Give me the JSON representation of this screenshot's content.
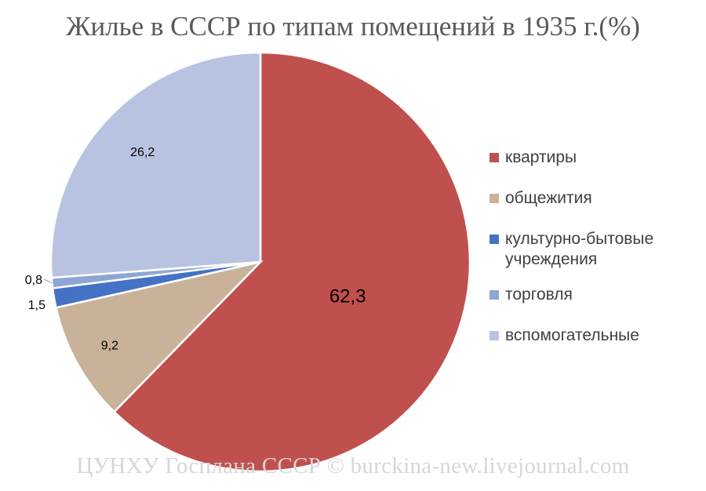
{
  "chart_data": {
    "type": "pie",
    "title": "Жилье в СССР по типам помещений в 1935 г.(%)",
    "start_angle_deg": 0,
    "direction": "clockwise",
    "slices": [
      {
        "label": "квартиры",
        "value": 62.3,
        "value_label": "62,3",
        "color": "#c0504d"
      },
      {
        "label": "общежития",
        "value": 9.2,
        "value_label": "9,2",
        "color": "#c9b29a"
      },
      {
        "label": "культурно-бытовые учреждения",
        "value": 1.5,
        "value_label": "1,5",
        "color": "#4472c4"
      },
      {
        "label": "торговля",
        "value": 0.8,
        "value_label": "0,8",
        "color": "#8ea5d6"
      },
      {
        "label": "вспомогательные",
        "value": 26.2,
        "value_label": "26,2",
        "color": "#b8c3e2"
      }
    ],
    "legend_position": "right"
  },
  "watermark": "ЦУНХУ Госплана СССР © burckina-new.livejournal.com"
}
